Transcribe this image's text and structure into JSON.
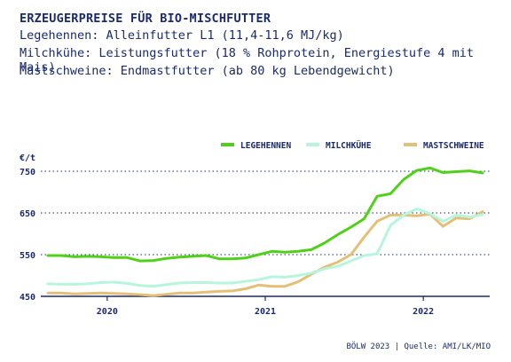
{
  "header": {
    "title": "ERZEUGERPREISE FÜR BIO-MISCHFUTTER",
    "line1": "Legehennen: Alleinfutter L1 (11,4-11,6 MJ/kg)",
    "line2": "Milchkühe: Leistungsfutter (18 % Rohprotein, Energiestufe 4 mit Mais)",
    "line3": "Mastschweine: Endmastfutter (ab 80 kg Lebendgewicht)"
  },
  "source": "BÖLW 2023 | Quelle: AMI/LK/MIO",
  "chart_data": {
    "type": "line",
    "y_unit_label": "€/t",
    "ylim": [
      450,
      765
    ],
    "yticks": [
      450,
      550,
      650,
      750
    ],
    "xticks": [
      {
        "label": "2020",
        "x": 2020.0
      },
      {
        "label": "2021",
        "x": 2021.0
      },
      {
        "label": "2022",
        "x": 2022.0
      }
    ],
    "xlim": [
      2019.58,
      2022.42
    ],
    "grid": true,
    "legend_position": "top-right",
    "x": [
      2019.625,
      2019.708,
      2019.792,
      2019.875,
      2019.958,
      2020.042,
      2020.125,
      2020.208,
      2020.292,
      2020.375,
      2020.458,
      2020.542,
      2020.625,
      2020.708,
      2020.792,
      2020.875,
      2020.958,
      2021.042,
      2021.125,
      2021.208,
      2021.292,
      2021.375,
      2021.458,
      2021.542,
      2021.625,
      2021.708,
      2021.792,
      2021.875,
      2021.958,
      2022.042,
      2022.125,
      2022.208,
      2022.292,
      2022.375
    ],
    "series": [
      {
        "name": "LEGEHENNEN",
        "color": "#4fd11a",
        "values": [
          548,
          548,
          545,
          546,
          545,
          543,
          543,
          535,
          536,
          541,
          544,
          546,
          548,
          540,
          540,
          542,
          550,
          558,
          556,
          558,
          562,
          578,
          598,
          616,
          636,
          690,
          696,
          730,
          752,
          758,
          747,
          749,
          751,
          746
        ]
      },
      {
        "name": "MILCHKÜHE",
        "color": "#b7f5dc",
        "values": [
          480,
          479,
          479,
          480,
          483,
          484,
          481,
          476,
          474,
          478,
          482,
          483,
          483,
          482,
          482,
          486,
          490,
          497,
          496,
          500,
          506,
          516,
          522,
          535,
          548,
          552,
          620,
          645,
          660,
          648,
          630,
          645,
          640,
          646
        ]
      },
      {
        "name": "MASTSCHWEINE",
        "color": "#e3c077",
        "values": [
          458,
          458,
          456,
          457,
          458,
          457,
          456,
          454,
          452,
          455,
          458,
          458,
          460,
          462,
          463,
          468,
          477,
          474,
          474,
          485,
          503,
          520,
          532,
          550,
          592,
          630,
          645,
          645,
          643,
          647,
          618,
          638,
          636,
          653
        ]
      }
    ]
  }
}
